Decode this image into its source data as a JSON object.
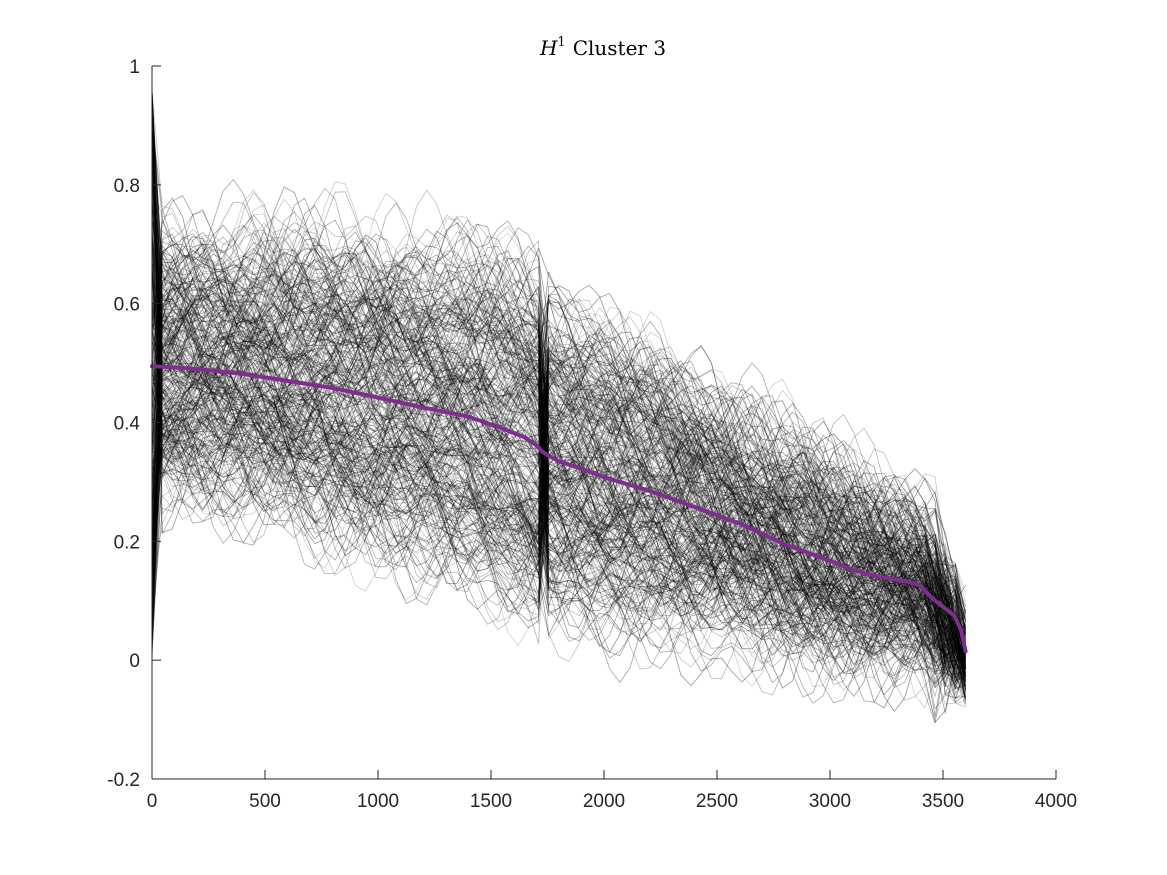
{
  "chart_data": {
    "type": "line",
    "title": {
      "symbol": "H",
      "superscript": "1",
      "text": "Cluster 3"
    },
    "xlabel": "",
    "ylabel": "",
    "xlim": [
      0,
      4000
    ],
    "ylim": [
      -0.2,
      1
    ],
    "xticks": [
      0,
      500,
      1000,
      1500,
      2000,
      2500,
      3000,
      3500,
      4000
    ],
    "xtick_labels": [
      "0",
      "500",
      "1000",
      "1500",
      "2000",
      "2500",
      "3000",
      "3500",
      "4000"
    ],
    "yticks": [
      -0.2,
      0,
      0.2,
      0.4,
      0.6,
      0.8,
      1
    ],
    "ytick_labels": [
      "-0.2",
      "0",
      "0.2",
      "0.4",
      "0.6",
      "0.8",
      "1"
    ],
    "grid": false,
    "legend": "none",
    "background_traces": {
      "color": "#000000",
      "x_range": [
        0,
        3600
      ]
    },
    "mean_series": {
      "color": "#7e2f8e",
      "x": [
        0,
        200,
        400,
        600,
        800,
        1000,
        1200,
        1400,
        1550,
        1650,
        1700,
        1730,
        1760,
        1800,
        1900,
        2000,
        2200,
        2400,
        2600,
        2800,
        3000,
        3100,
        3200,
        3300,
        3350,
        3400,
        3450,
        3500,
        3550,
        3580,
        3600
      ],
      "y": [
        0.495,
        0.49,
        0.482,
        0.47,
        0.458,
        0.442,
        0.425,
        0.41,
        0.39,
        0.375,
        0.362,
        0.35,
        0.343,
        0.335,
        0.322,
        0.308,
        0.285,
        0.258,
        0.23,
        0.195,
        0.167,
        0.152,
        0.142,
        0.135,
        0.132,
        0.125,
        0.105,
        0.09,
        0.075,
        0.05,
        0.015
      ]
    }
  }
}
